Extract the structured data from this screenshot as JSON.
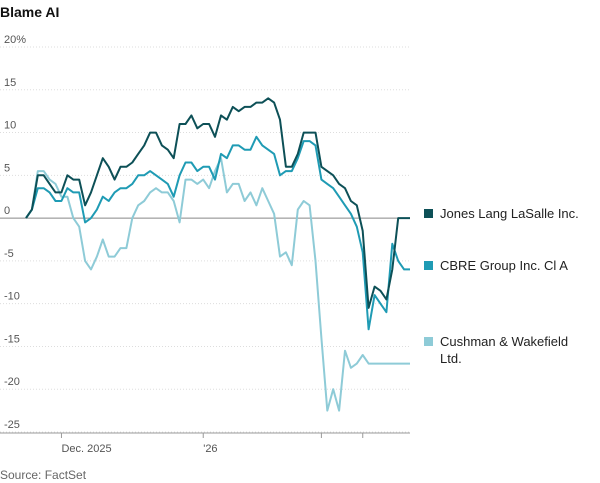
{
  "title": "Blame AI",
  "source": "Source: FactSet",
  "chart_data": {
    "type": "line",
    "title": "Blame AI",
    "xlabel": "",
    "ylabel": "",
    "ylim": [
      -25,
      20
    ],
    "yticks": [
      20,
      15,
      10,
      5,
      0,
      -5,
      -10,
      -15,
      -20,
      -25
    ],
    "ytick_labels": [
      "20%",
      "15",
      "10",
      "5",
      "0",
      "-5",
      "-10",
      "-15",
      "-20",
      "-25"
    ],
    "xtick_labels": [
      "Dec. 2025",
      "'26",
      "",
      ""
    ],
    "xtick_positions": [
      6,
      30,
      50,
      57
    ],
    "x_count": 66,
    "grid": true,
    "series": [
      {
        "name": "Jones Lang LaSalle Inc.",
        "color": "#0d5057",
        "values": [
          0,
          1,
          5,
          5,
          4,
          3,
          3,
          5,
          4.5,
          4.5,
          1.5,
          3,
          5,
          7,
          6,
          4.5,
          6,
          6,
          6.5,
          7.5,
          8.5,
          10,
          10,
          8.5,
          8,
          7,
          11,
          11,
          12,
          10.5,
          11,
          11,
          9.5,
          12,
          11.5,
          13,
          12.5,
          13,
          13,
          13.5,
          13.5,
          14,
          13.5,
          11.5,
          6,
          6,
          7.5,
          10,
          10,
          10,
          6,
          5.5,
          5,
          4,
          3.5,
          2,
          1.5,
          -1.5,
          -10.5,
          -8,
          -8.5,
          -9.5,
          -6,
          0,
          0,
          0
        ]
      },
      {
        "name": "CBRE Group Inc. Cl A",
        "color": "#1f9bb4",
        "values": [
          0,
          1,
          3.5,
          3.5,
          3,
          2,
          2,
          3.5,
          3,
          3,
          -0.5,
          0,
          1,
          2.5,
          2,
          3,
          3.5,
          3.5,
          4,
          5,
          5,
          5.5,
          5,
          4.5,
          4,
          2.5,
          5,
          6.5,
          6.5,
          5.5,
          6,
          6,
          4.5,
          7.5,
          7,
          8.5,
          8.5,
          8,
          8,
          9.5,
          8.5,
          8,
          7.5,
          5,
          5.5,
          5.5,
          7,
          9,
          9,
          8.5,
          4.5,
          4,
          3.5,
          2.5,
          1.5,
          0.5,
          -1,
          -4,
          -13,
          -9,
          -10,
          -11,
          -3,
          -5,
          -6,
          -6
        ]
      },
      {
        "name": "Cushman & Wakefield Ltd.",
        "color": "#8ecbd7",
        "values": [
          0,
          1,
          5.5,
          5.5,
          4.5,
          4,
          2.5,
          2.5,
          0,
          -1,
          -5,
          -6,
          -4.5,
          -2.5,
          -4.5,
          -4.5,
          -3.5,
          -3.5,
          0,
          1.5,
          2,
          3,
          3.5,
          3,
          3,
          2,
          -0.5,
          4.5,
          4.5,
          4,
          4.5,
          3.5,
          5.5,
          7,
          3,
          4,
          4,
          2,
          3,
          1.5,
          3.5,
          2,
          0.5,
          -4.5,
          -4,
          -5.5,
          1,
          2,
          1.5,
          -5,
          -14,
          -22.5,
          -20,
          -22.5,
          -15.5,
          -17.5,
          -17,
          -16,
          -17,
          -17,
          -17,
          -17,
          -17,
          -17,
          -17,
          -17
        ]
      }
    ],
    "legend_position": "right"
  }
}
